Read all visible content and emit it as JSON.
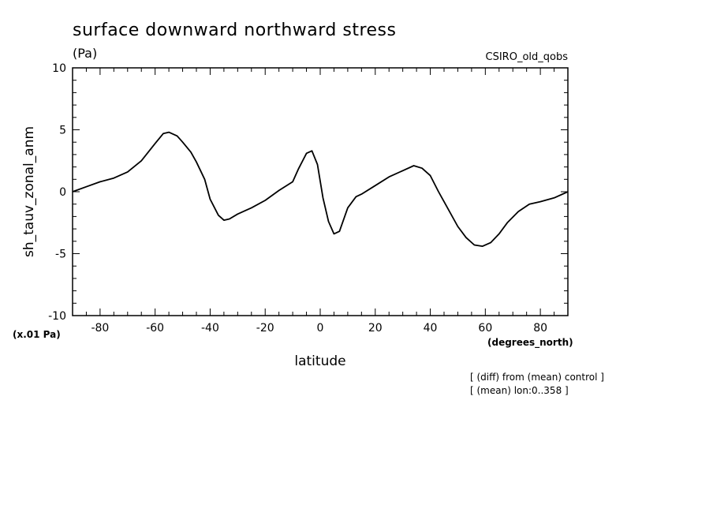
{
  "chart_data": {
    "type": "line",
    "title": "surface downward northward stress",
    "units": "(Pa)",
    "model": "CSIRO_old_qobs",
    "ylabel": "sh_tauv_zonal_anm",
    "xlabel": "latitude",
    "xunits": "(degrees_north)",
    "yscale_note": "(x.01 Pa)",
    "notes": [
      "[ (diff) from (mean) control ]",
      "[ (mean) lon:0..358 ]"
    ],
    "xlim": [
      -90,
      90
    ],
    "ylim": [
      -10,
      10
    ],
    "xticks": [
      -80,
      -60,
      -40,
      -20,
      0,
      20,
      40,
      60,
      80
    ],
    "yticks": [
      -10,
      -5,
      0,
      5,
      10
    ],
    "grid": false,
    "series": [
      {
        "x": [
          -90,
          -85,
          -80,
          -75,
          -70,
          -65,
          -60,
          -57,
          -55,
          -52,
          -50,
          -47,
          -45,
          -42,
          -40,
          -37,
          -35,
          -33,
          -30,
          -27,
          -25,
          -20,
          -15,
          -10,
          -8,
          -5,
          -3,
          -1,
          1,
          3,
          5,
          7,
          10,
          13,
          15,
          20,
          25,
          30,
          34,
          37,
          40,
          43,
          45,
          50,
          53,
          56,
          59,
          62,
          65,
          68,
          72,
          76,
          80,
          85,
          90
        ],
        "y": [
          0,
          0.4,
          0.8,
          1.1,
          1.6,
          2.5,
          3.9,
          4.7,
          4.8,
          4.5,
          4.0,
          3.2,
          2.4,
          1.0,
          -0.6,
          -1.9,
          -2.3,
          -2.2,
          -1.8,
          -1.5,
          -1.3,
          -0.7,
          0.1,
          0.8,
          1.8,
          3.1,
          3.3,
          2.2,
          -0.5,
          -2.4,
          -3.4,
          -3.2,
          -1.3,
          -0.4,
          -0.2,
          0.5,
          1.2,
          1.7,
          2.1,
          1.9,
          1.3,
          0.0,
          -0.8,
          -2.8,
          -3.7,
          -4.3,
          -4.4,
          -4.1,
          -3.4,
          -2.5,
          -1.6,
          -1.0,
          -0.8,
          -0.5,
          0.0
        ]
      }
    ]
  }
}
